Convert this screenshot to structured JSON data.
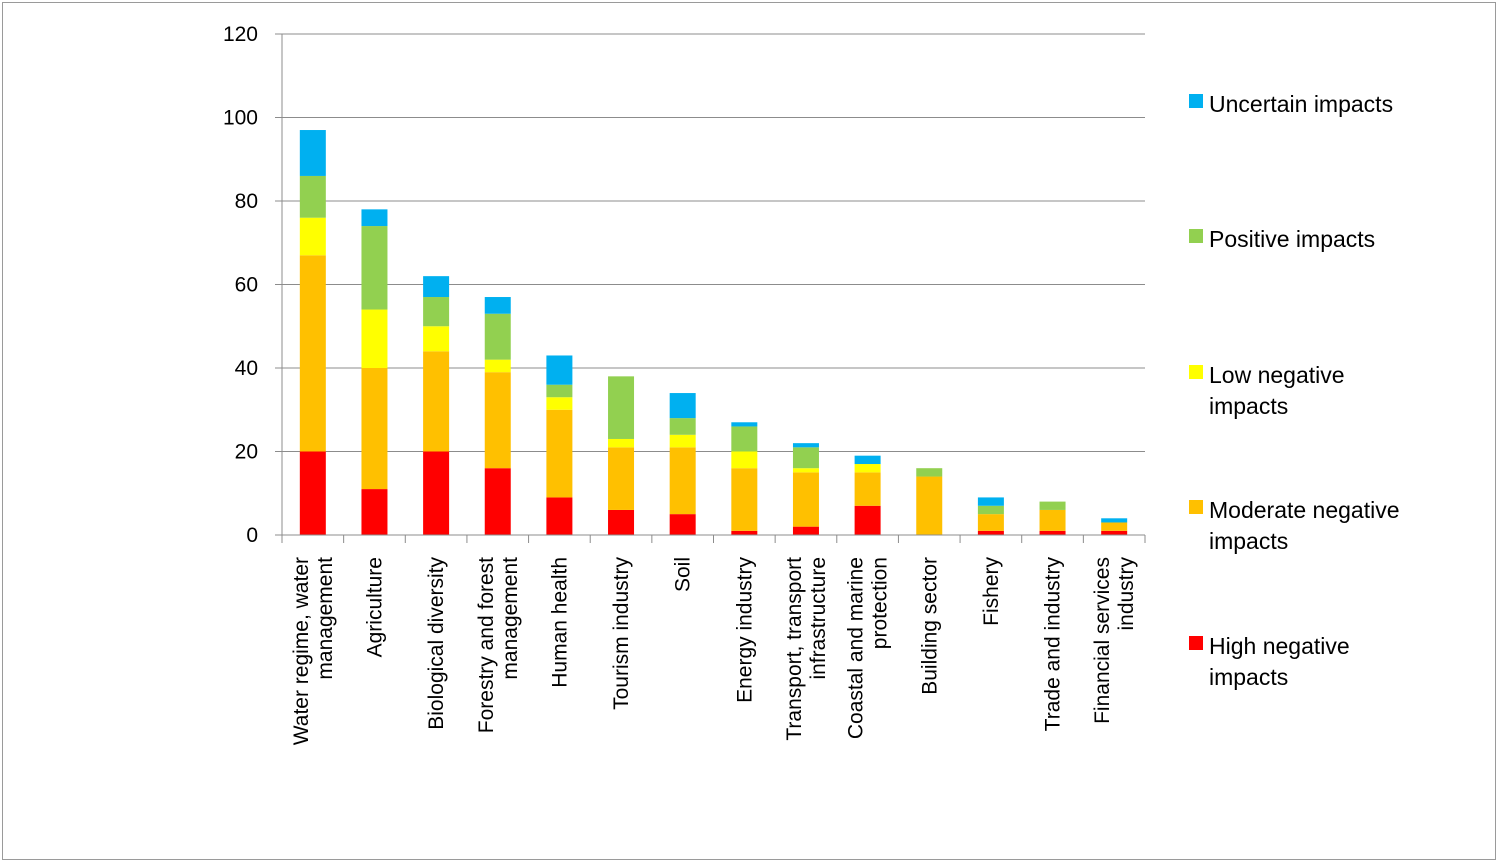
{
  "chart_data": {
    "type": "bar",
    "stacked": true,
    "title": "",
    "xlabel": "",
    "ylabel": "",
    "ylim": [
      0,
      120
    ],
    "yticks": [
      0,
      20,
      40,
      60,
      80,
      100,
      120
    ],
    "grid": true,
    "legend_position": "right",
    "categories": [
      [
        "Water regime, water",
        "management"
      ],
      [
        "Agriculture"
      ],
      [
        "Biological diversity"
      ],
      [
        "Forestry and forest",
        "management"
      ],
      [
        "Human health"
      ],
      [
        "Tourism industry"
      ],
      [
        "Soil"
      ],
      [
        "Energy industry"
      ],
      [
        "Transport, transport",
        "infrastructure"
      ],
      [
        "Coastal and marine",
        "protection"
      ],
      [
        "Building sector"
      ],
      [
        "Fishery"
      ],
      [
        "Trade and industry"
      ],
      [
        "Financial services",
        "industry"
      ]
    ],
    "series": [
      {
        "name": [
          "High negative",
          "impacts"
        ],
        "color": "#ff0000",
        "values": [
          20,
          11,
          20,
          16,
          9,
          6,
          5,
          1,
          2,
          7,
          0,
          1,
          1,
          1
        ]
      },
      {
        "name": [
          "Moderate negative",
          "impacts"
        ],
        "color": "#ffc000",
        "values": [
          47,
          29,
          24,
          23,
          21,
          15,
          16,
          15,
          13,
          8,
          14,
          4,
          5,
          2
        ]
      },
      {
        "name": [
          "Low negative",
          "impacts"
        ],
        "color": "#ffff00",
        "values": [
          9,
          14,
          6,
          3,
          3,
          2,
          3,
          4,
          1,
          2,
          0,
          0,
          0,
          0
        ]
      },
      {
        "name": [
          "Positive impacts"
        ],
        "color": "#92d050",
        "values": [
          10,
          20,
          7,
          11,
          3,
          15,
          4,
          6,
          5,
          0,
          2,
          2,
          2,
          0
        ]
      },
      {
        "name": [
          "Uncertain impacts"
        ],
        "color": "#00b0f0",
        "values": [
          11,
          4,
          5,
          4,
          7,
          0,
          6,
          1,
          1,
          2,
          0,
          2,
          0,
          1
        ]
      }
    ]
  }
}
